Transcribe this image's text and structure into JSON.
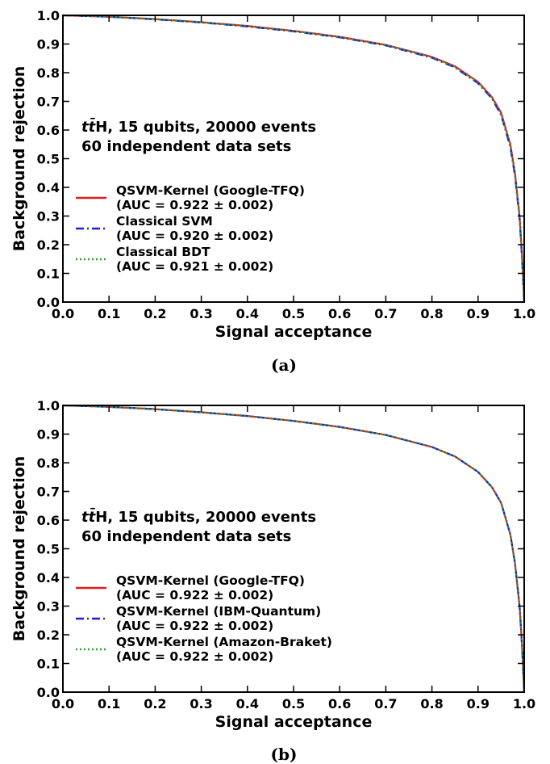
{
  "chart_data": [
    {
      "type": "line",
      "caption": "(a)",
      "xlabel": "Signal acceptance",
      "ylabel": "Background rejection",
      "xlim": [
        0.0,
        1.0
      ],
      "ylim": [
        0.0,
        1.0
      ],
      "xticks": [
        "0.0",
        "0.1",
        "0.2",
        "0.3",
        "0.4",
        "0.5",
        "0.6",
        "0.7",
        "0.8",
        "0.9",
        "1.0"
      ],
      "yticks": [
        "0.0",
        "0.1",
        "0.2",
        "0.3",
        "0.4",
        "0.5",
        "0.6",
        "0.7",
        "0.8",
        "0.9",
        "1.0"
      ],
      "grid": false,
      "annotation_line1_prefix": "t",
      "annotation_line1_tbar": "t̄",
      "annotation_line1_suffix": "H, 15 qubits, 20000 events",
      "annotation_line2": "60 independent data sets",
      "legend_position": "lower-left",
      "x": [
        0.0,
        0.1,
        0.2,
        0.3,
        0.4,
        0.5,
        0.6,
        0.7,
        0.8,
        0.85,
        0.9,
        0.93,
        0.95,
        0.97,
        0.98,
        0.99,
        0.995,
        1.0
      ],
      "series": [
        {
          "name": "QSVM-Kernel (Google-TFQ)",
          "auc": "(AUC = 0.922 ± 0.002)",
          "color": "#e41a1c",
          "dash": "solid",
          "values": [
            1.0,
            0.995,
            0.987,
            0.976,
            0.963,
            0.946,
            0.925,
            0.897,
            0.855,
            0.822,
            0.768,
            0.715,
            0.66,
            0.55,
            0.45,
            0.3,
            0.17,
            0.0
          ]
        },
        {
          "name": "Classical SVM",
          "auc": "(AUC = 0.920 ± 0.002)",
          "color": "#1f1fd6",
          "dash": "dashdot",
          "values": [
            1.0,
            0.995,
            0.986,
            0.975,
            0.961,
            0.944,
            0.923,
            0.895,
            0.852,
            0.818,
            0.763,
            0.71,
            0.652,
            0.54,
            0.44,
            0.29,
            0.16,
            0.0
          ]
        },
        {
          "name": "Classical BDT",
          "auc": "(AUC = 0.921 ± 0.002)",
          "color": "#2ca02c",
          "dash": "dotted",
          "values": [
            1.0,
            0.995,
            0.987,
            0.976,
            0.962,
            0.945,
            0.924,
            0.896,
            0.854,
            0.82,
            0.766,
            0.712,
            0.656,
            0.545,
            0.445,
            0.295,
            0.165,
            0.0
          ]
        }
      ]
    },
    {
      "type": "line",
      "caption": "(b)",
      "xlabel": "Signal acceptance",
      "ylabel": "Background rejection",
      "xlim": [
        0.0,
        1.0
      ],
      "ylim": [
        0.0,
        1.0
      ],
      "xticks": [
        "0.0",
        "0.1",
        "0.2",
        "0.3",
        "0.4",
        "0.5",
        "0.6",
        "0.7",
        "0.8",
        "0.9",
        "1.0"
      ],
      "yticks": [
        "0.0",
        "0.1",
        "0.2",
        "0.3",
        "0.4",
        "0.5",
        "0.6",
        "0.7",
        "0.8",
        "0.9",
        "1.0"
      ],
      "grid": false,
      "annotation_line1_prefix": "t",
      "annotation_line1_tbar": "t̄",
      "annotation_line1_suffix": "H, 15 qubits, 20000 events",
      "annotation_line2": "60 independent data sets",
      "legend_position": "lower-left",
      "x": [
        0.0,
        0.1,
        0.2,
        0.3,
        0.4,
        0.5,
        0.6,
        0.7,
        0.8,
        0.85,
        0.9,
        0.93,
        0.95,
        0.97,
        0.98,
        0.99,
        0.995,
        1.0
      ],
      "series": [
        {
          "name": "QSVM-Kernel (Google-TFQ)",
          "auc": "(AUC = 0.922 ± 0.002)",
          "color": "#e41a1c",
          "dash": "solid",
          "values": [
            1.0,
            0.995,
            0.987,
            0.976,
            0.963,
            0.946,
            0.925,
            0.897,
            0.855,
            0.822,
            0.768,
            0.715,
            0.66,
            0.55,
            0.45,
            0.3,
            0.17,
            0.0
          ]
        },
        {
          "name": "QSVM-Kernel (IBM-Quantum)",
          "auc": "(AUC = 0.922 ± 0.002)",
          "color": "#1f1fd6",
          "dash": "dashdot",
          "values": [
            1.0,
            0.995,
            0.987,
            0.976,
            0.963,
            0.946,
            0.925,
            0.897,
            0.855,
            0.822,
            0.768,
            0.715,
            0.66,
            0.55,
            0.45,
            0.3,
            0.17,
            0.0
          ]
        },
        {
          "name": "QSVM-Kernel (Amazon-Braket)",
          "auc": "(AUC = 0.922 ± 0.002)",
          "color": "#2ca02c",
          "dash": "dotted",
          "values": [
            1.0,
            0.995,
            0.987,
            0.976,
            0.963,
            0.946,
            0.925,
            0.897,
            0.855,
            0.822,
            0.768,
            0.715,
            0.66,
            0.55,
            0.45,
            0.3,
            0.17,
            0.0
          ]
        }
      ]
    }
  ]
}
